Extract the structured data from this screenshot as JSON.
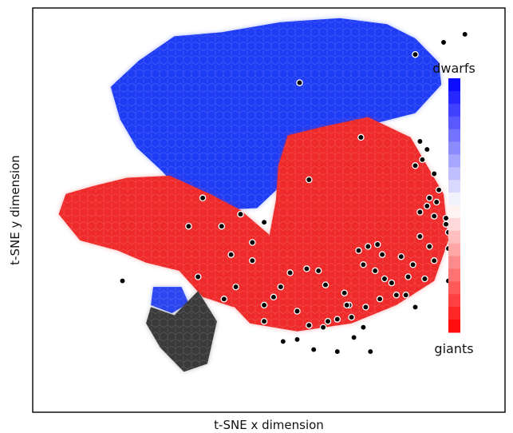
{
  "chart_data": {
    "type": "hexbin",
    "title": "",
    "xlabel": "t-SNE x dimension",
    "ylabel": "t-SNE y dimension",
    "xlim": [
      -1,
      1
    ],
    "ylim": [
      -1,
      1
    ],
    "grid": false,
    "axis_ticks": false,
    "colorbar": {
      "placement": "right",
      "top_label": "dwarfs",
      "bottom_label": "giants",
      "top_color": "#0000ff",
      "mid_color": "#ffffff",
      "bottom_color": "#ff0000",
      "levels": 20
    },
    "regions": [
      {
        "name": "dwarfs",
        "color": "#1f3cf5",
        "value": -1.0,
        "polygon": [
          [
            -0.55,
            0.74
          ],
          [
            -0.4,
            0.86
          ],
          [
            -0.2,
            0.88
          ],
          [
            0.05,
            0.93
          ],
          [
            0.3,
            0.95
          ],
          [
            0.5,
            0.92
          ],
          [
            0.62,
            0.85
          ],
          [
            0.72,
            0.73
          ],
          [
            0.73,
            0.62
          ],
          [
            0.62,
            0.48
          ],
          [
            0.42,
            0.42
          ],
          [
            0.22,
            0.38
          ],
          [
            0.09,
            0.29
          ],
          [
            0.05,
            0.12
          ],
          [
            -0.05,
            0.01
          ],
          [
            -0.22,
            0.0
          ],
          [
            -0.36,
            0.07
          ],
          [
            -0.45,
            0.19
          ],
          [
            -0.56,
            0.31
          ],
          [
            -0.63,
            0.45
          ],
          [
            -0.67,
            0.61
          ]
        ]
      },
      {
        "name": "giants-right",
        "color": "#ef2a2a",
        "value": 1.0,
        "polygon": [
          [
            0.08,
            0.37
          ],
          [
            0.22,
            0.41
          ],
          [
            0.42,
            0.46
          ],
          [
            0.6,
            0.36
          ],
          [
            0.74,
            0.08
          ],
          [
            0.76,
            -0.15
          ],
          [
            0.7,
            -0.35
          ],
          [
            0.54,
            -0.47
          ],
          [
            0.35,
            -0.56
          ],
          [
            0.12,
            -0.6
          ],
          [
            -0.08,
            -0.56
          ],
          [
            -0.17,
            -0.45
          ],
          [
            -0.1,
            -0.3
          ],
          [
            0.0,
            -0.14
          ],
          [
            0.03,
            0.05
          ],
          [
            0.04,
            0.22
          ]
        ]
      },
      {
        "name": "giants-left",
        "color": "#ef2a2a",
        "value": 1.0,
        "polygon": [
          [
            -0.74,
            0.12
          ],
          [
            -0.6,
            0.16
          ],
          [
            -0.42,
            0.17
          ],
          [
            -0.25,
            0.08
          ],
          [
            -0.12,
            0.0
          ],
          [
            0.0,
            -0.12
          ],
          [
            0.03,
            -0.25
          ],
          [
            -0.05,
            -0.4
          ],
          [
            -0.15,
            -0.48
          ],
          [
            -0.28,
            -0.43
          ],
          [
            -0.38,
            -0.3
          ],
          [
            -0.52,
            -0.26
          ],
          [
            -0.64,
            -0.2
          ],
          [
            -0.8,
            -0.15
          ],
          [
            -0.89,
            -0.02
          ],
          [
            -0.86,
            0.08
          ]
        ]
      },
      {
        "name": "dwarfs-small",
        "color": "#2b46f0",
        "value": -0.9,
        "polygon": [
          [
            -0.49,
            -0.38
          ],
          [
            -0.37,
            -0.38
          ],
          [
            -0.34,
            -0.46
          ],
          [
            -0.41,
            -0.51
          ],
          [
            -0.5,
            -0.47
          ]
        ]
      },
      {
        "name": "mixed-dark-bottom",
        "color": "#3a3a3a",
        "value": 0.0,
        "polygon": [
          [
            -0.5,
            -0.48
          ],
          [
            -0.4,
            -0.52
          ],
          [
            -0.3,
            -0.4
          ],
          [
            -0.22,
            -0.55
          ],
          [
            -0.26,
            -0.76
          ],
          [
            -0.36,
            -0.8
          ],
          [
            -0.46,
            -0.68
          ],
          [
            -0.52,
            -0.56
          ]
        ]
      }
    ],
    "highlighted_points": [
      [
        0.83,
        0.87
      ],
      [
        0.74,
        0.83
      ],
      [
        0.62,
        0.77
      ],
      [
        0.39,
        0.36
      ],
      [
        0.13,
        0.63
      ],
      [
        0.17,
        0.15
      ],
      [
        0.64,
        0.34
      ],
      [
        0.67,
        0.3
      ],
      [
        0.65,
        0.25
      ],
      [
        0.62,
        0.22
      ],
      [
        0.7,
        0.18
      ],
      [
        0.72,
        0.1
      ],
      [
        0.71,
        0.04
      ],
      [
        0.68,
        0.06
      ],
      [
        0.67,
        0.02
      ],
      [
        0.64,
        -0.01
      ],
      [
        0.7,
        -0.03
      ],
      [
        0.75,
        -0.04
      ],
      [
        0.75,
        -0.07
      ],
      [
        0.79,
        -0.07
      ],
      [
        0.76,
        -0.11
      ],
      [
        0.76,
        -0.19
      ],
      [
        0.7,
        -0.25
      ],
      [
        0.68,
        -0.18
      ],
      [
        0.64,
        -0.13
      ],
      [
        0.61,
        -0.27
      ],
      [
        0.59,
        -0.33
      ],
      [
        0.66,
        -0.34
      ],
      [
        0.76,
        -0.35
      ],
      [
        0.8,
        -0.28
      ],
      [
        0.56,
        -0.23
      ],
      [
        0.48,
        -0.22
      ],
      [
        0.46,
        -0.17
      ],
      [
        0.42,
        -0.18
      ],
      [
        0.38,
        -0.2
      ],
      [
        0.4,
        -0.27
      ],
      [
        0.45,
        -0.3
      ],
      [
        0.49,
        -0.34
      ],
      [
        0.52,
        -0.36
      ],
      [
        0.54,
        -0.42
      ],
      [
        0.58,
        -0.42
      ],
      [
        0.62,
        -0.48
      ],
      [
        0.47,
        -0.44
      ],
      [
        0.41,
        -0.48
      ],
      [
        0.34,
        -0.47
      ],
      [
        0.32,
        -0.41
      ],
      [
        0.24,
        -0.37
      ],
      [
        0.21,
        -0.3
      ],
      [
        0.16,
        -0.29
      ],
      [
        0.09,
        -0.31
      ],
      [
        0.05,
        -0.38
      ],
      [
        0.02,
        -0.43
      ],
      [
        -0.02,
        -0.47
      ],
      [
        -0.02,
        -0.55
      ],
      [
        0.06,
        -0.65
      ],
      [
        0.12,
        -0.64
      ],
      [
        0.19,
        -0.69
      ],
      [
        0.29,
        -0.7
      ],
      [
        0.36,
        -0.63
      ],
      [
        0.43,
        -0.7
      ],
      [
        0.4,
        -0.58
      ],
      [
        0.35,
        -0.53
      ],
      [
        0.33,
        -0.47
      ],
      [
        0.29,
        -0.54
      ],
      [
        0.23,
        -0.58
      ],
      [
        0.17,
        -0.57
      ],
      [
        0.12,
        -0.5
      ],
      [
        0.25,
        -0.55
      ],
      [
        -0.12,
        -0.02
      ],
      [
        -0.07,
        -0.16
      ],
      [
        -0.16,
        -0.22
      ],
      [
        -0.07,
        -0.25
      ],
      [
        -0.3,
        -0.33
      ],
      [
        -0.14,
        -0.38
      ],
      [
        -0.62,
        -0.35
      ],
      [
        -0.19,
        -0.44
      ],
      [
        -0.34,
        -0.08
      ],
      [
        -0.28,
        0.06
      ],
      [
        -0.2,
        -0.08
      ],
      [
        -0.02,
        -0.06
      ]
    ]
  }
}
